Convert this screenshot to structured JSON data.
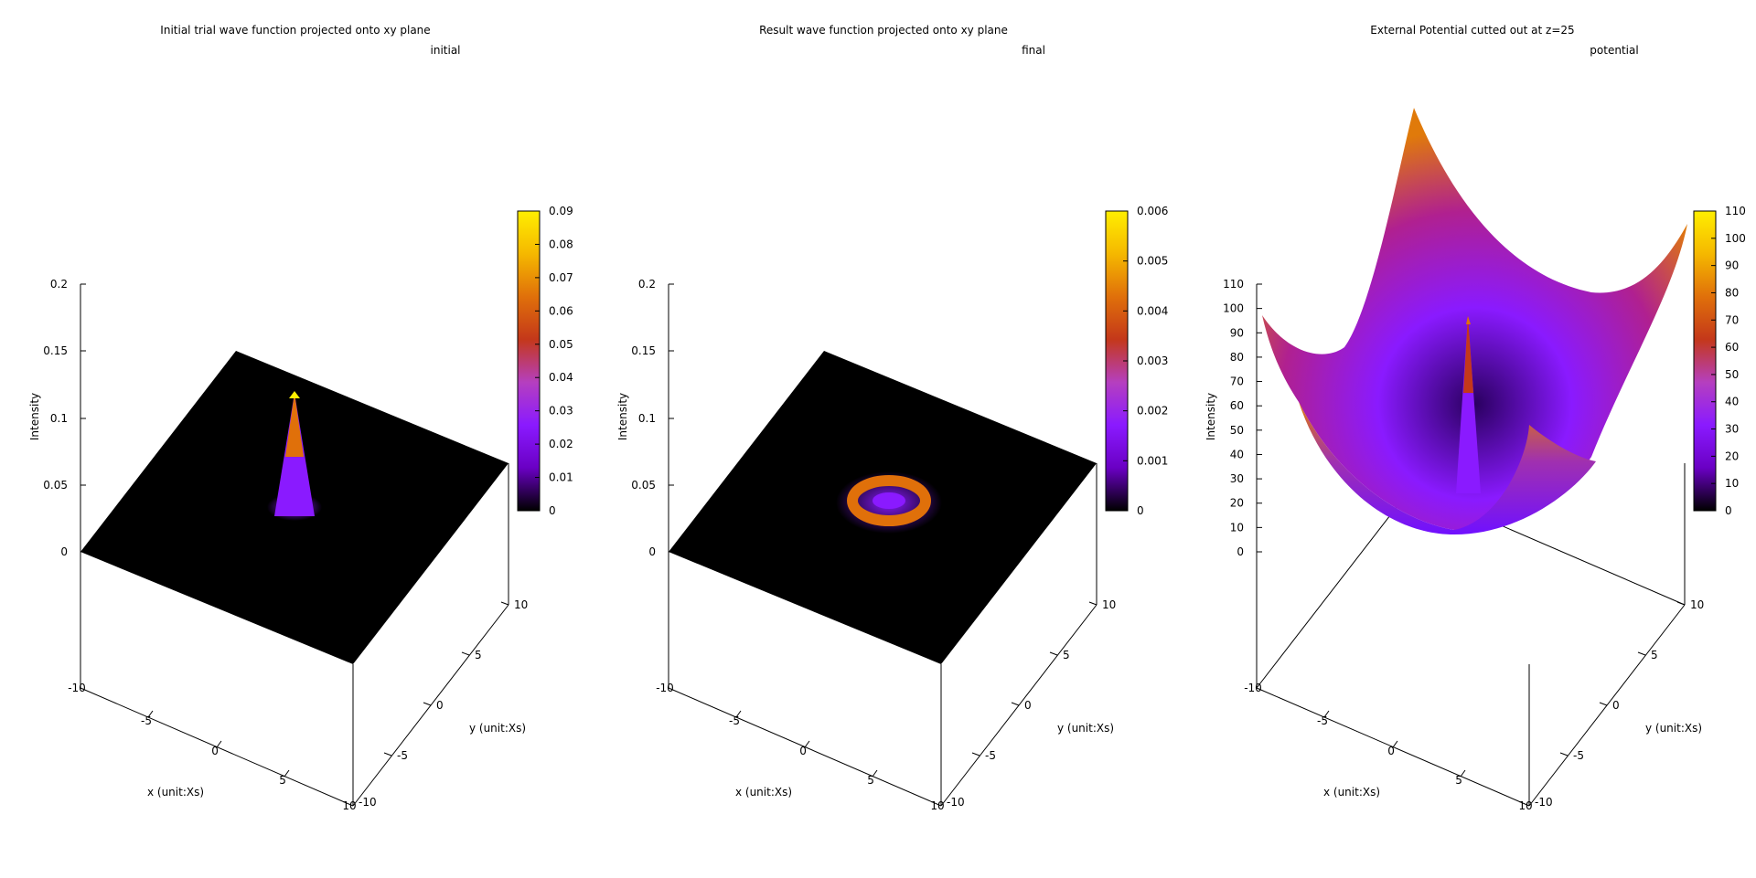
{
  "chart_data": [
    {
      "type": "surface3d",
      "title": "Initial trial wave function projected onto xy plane",
      "legend": [
        "initial"
      ],
      "xlabel": "x (unit:Xs)",
      "ylabel": "y (unit:Xs)",
      "zlabel": "Intensity",
      "xlim": [
        -10,
        10
      ],
      "ylim": [
        -10,
        10
      ],
      "zlim": [
        0,
        0.2
      ],
      "x_ticks": [
        "-10",
        "-5",
        "0",
        "5",
        "10"
      ],
      "y_ticks": [
        "-10",
        "-5",
        "0",
        "5",
        "10"
      ],
      "z_ticks": [
        "0",
        "0.05",
        "0.1",
        "0.15",
        "0.2"
      ],
      "colorbar_range": [
        0,
        0.09
      ],
      "colorbar_ticks": [
        "0",
        "0.01",
        "0.02",
        "0.03",
        "0.04",
        "0.05",
        "0.06",
        "0.07",
        "0.08",
        "0.09"
      ],
      "surface": {
        "shape": "gaussian-peak",
        "center": [
          0,
          0
        ],
        "peak": 0.09,
        "width": 0.6
      },
      "palette": [
        "#000000",
        "#6a00c4",
        "#8a1aff",
        "#b53fbf",
        "#c4381a",
        "#e0700a",
        "#f5b800",
        "#ffee00"
      ]
    },
    {
      "type": "surface3d",
      "title": "Result wave function projected onto xy plane",
      "legend": [
        "final"
      ],
      "xlabel": "x (unit:Xs)",
      "ylabel": "y (unit:Xs)",
      "zlabel": "Intensity",
      "xlim": [
        -10,
        10
      ],
      "ylim": [
        -10,
        10
      ],
      "zlim": [
        0,
        0.2
      ],
      "x_ticks": [
        "-10",
        "-5",
        "0",
        "5",
        "10"
      ],
      "y_ticks": [
        "-10",
        "-5",
        "0",
        "5",
        "10"
      ],
      "z_ticks": [
        "0",
        "0.05",
        "0.1",
        "0.15",
        "0.2"
      ],
      "colorbar_range": [
        0,
        0.006
      ],
      "colorbar_ticks": [
        "0",
        "0.001",
        "0.002",
        "0.003",
        "0.004",
        "0.005",
        "0.006"
      ],
      "surface": {
        "shape": "ring",
        "center": [
          0,
          0
        ],
        "peak": 0.006,
        "radius": 2
      },
      "palette": [
        "#000000",
        "#6a00c4",
        "#8a1aff",
        "#b53fbf",
        "#c4381a",
        "#e0700a",
        "#f5b800",
        "#ffee00"
      ]
    },
    {
      "type": "surface3d",
      "title": "External Potential cutted out at z=25",
      "legend": [
        "potential"
      ],
      "xlabel": "x (unit:Xs)",
      "ylabel": "y (unit:Xs)",
      "zlabel": "Intensity",
      "xlim": [
        -10,
        10
      ],
      "ylim": [
        -10,
        10
      ],
      "zlim": [
        0,
        110
      ],
      "x_ticks": [
        "-10",
        "-5",
        "0",
        "5",
        "10"
      ],
      "y_ticks": [
        "-10",
        "-5",
        "0",
        "5",
        "10"
      ],
      "z_ticks": [
        "0",
        "10",
        "20",
        "30",
        "40",
        "50",
        "60",
        "70",
        "80",
        "90",
        "100",
        "110"
      ],
      "colorbar_range": [
        0,
        110
      ],
      "colorbar_ticks": [
        "0",
        "10",
        "20",
        "30",
        "40",
        "50",
        "60",
        "70",
        "80",
        "90",
        "100",
        "110"
      ],
      "surface": {
        "shape": "harmonic-bowl-with-spike",
        "center": [
          0,
          0
        ],
        "max": 110,
        "spike_height": 95
      },
      "palette": [
        "#000000",
        "#6a00c4",
        "#8a1aff",
        "#b53fbf",
        "#c4381a",
        "#e0700a",
        "#f5b800",
        "#ffee00"
      ]
    }
  ]
}
